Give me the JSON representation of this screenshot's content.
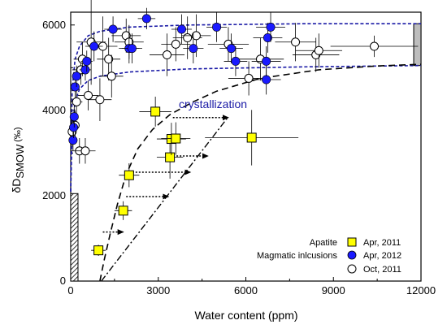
{
  "chart_data": {
    "type": "scatter",
    "title": "",
    "xlabel": "Water content (ppm)",
    "ylabel": {
      "main": "δD",
      "sub": "SMOW",
      "unit": "(‰)"
    },
    "xlim": [
      0,
      12000
    ],
    "ylim": [
      0,
      6300
    ],
    "xticks": [
      0,
      3000,
      6000,
      9000,
      12000
    ],
    "yticks": [
      0,
      2000,
      4000,
      6000
    ],
    "grid": false,
    "legend_placement": "bottom-right",
    "legend": {
      "group_labels": [
        "Apatite",
        "Magmatic inlcusions"
      ],
      "entries": [
        "Apr, 2011",
        "Apr, 2012",
        "Oct, 2011"
      ]
    },
    "annotation": "crystallization",
    "colors": {
      "apatite": "#ffff00",
      "apr2012": "#1a1aff",
      "model_curve": "#1a1aa6",
      "annotation": "#1a1aa6"
    },
    "series": [
      {
        "name": "Apr, 2011",
        "marker": "square",
        "points": [
          {
            "x": 950,
            "y": 720,
            "xerr": 250,
            "yerr": 130
          },
          {
            "x": 1800,
            "y": 1650,
            "xerr": 300,
            "yerr": 220
          },
          {
            "x": 2000,
            "y": 2480,
            "xerr": 350,
            "yerr": 280
          },
          {
            "x": 2900,
            "y": 3970,
            "xerr": 550,
            "yerr": 350
          },
          {
            "x": 3400,
            "y": 2900,
            "xerr": 450,
            "yerr": 500
          },
          {
            "x": 3450,
            "y": 3330,
            "xerr": 500,
            "yerr": 380
          },
          {
            "x": 3600,
            "y": 3340,
            "xerr": 500,
            "yerr": 380
          },
          {
            "x": 6200,
            "y": 3360,
            "xerr": 1600,
            "yerr": 650
          }
        ]
      },
      {
        "name": "Apr, 2012",
        "marker": "filled-circle",
        "points": [
          {
            "x": 80,
            "y": 3300,
            "xerr": 120,
            "yerr": 250
          },
          {
            "x": 100,
            "y": 3600,
            "xerr": 120,
            "yerr": 250
          },
          {
            "x": 120,
            "y": 3850,
            "xerr": 120,
            "yerr": 250
          },
          {
            "x": 150,
            "y": 4550,
            "xerr": 150,
            "yerr": 250
          },
          {
            "x": 200,
            "y": 4800,
            "xerr": 150,
            "yerr": 250
          },
          {
            "x": 500,
            "y": 4950,
            "xerr": 200,
            "yerr": 250
          },
          {
            "x": 550,
            "y": 5150,
            "xerr": 200,
            "yerr": 250
          },
          {
            "x": 800,
            "y": 5500,
            "xerr": 300,
            "yerr": 350
          },
          {
            "x": 1450,
            "y": 5900,
            "xerr": 300,
            "yerr": 300
          },
          {
            "x": 2000,
            "y": 5450,
            "xerr": 350,
            "yerr": 350
          },
          {
            "x": 2100,
            "y": 5450,
            "xerr": 350,
            "yerr": 350
          },
          {
            "x": 2600,
            "y": 6150,
            "xerr": 300,
            "yerr": 250
          },
          {
            "x": 3800,
            "y": 5900,
            "xerr": 350,
            "yerr": 350
          },
          {
            "x": 4200,
            "y": 5450,
            "xerr": 350,
            "yerr": 350
          },
          {
            "x": 5000,
            "y": 5950,
            "xerr": 350,
            "yerr": 350
          },
          {
            "x": 5500,
            "y": 5450,
            "xerr": 400,
            "yerr": 350
          },
          {
            "x": 5650,
            "y": 5150,
            "xerr": 400,
            "yerr": 350
          },
          {
            "x": 6700,
            "y": 4720,
            "xerr": 500,
            "yerr": 350
          },
          {
            "x": 6700,
            "y": 5150,
            "xerr": 500,
            "yerr": 350
          },
          {
            "x": 6750,
            "y": 5700,
            "xerr": 500,
            "yerr": 350
          },
          {
            "x": 6850,
            "y": 5950,
            "xerr": 500,
            "yerr": 350
          }
        ]
      },
      {
        "name": "Oct, 2011",
        "marker": "open-circle",
        "points": [
          {
            "x": 50,
            "y": 3500,
            "xerr": 150,
            "yerr": 350
          },
          {
            "x": 150,
            "y": 3650,
            "xerr": 150,
            "yerr": 350
          },
          {
            "x": 200,
            "y": 4200,
            "xerr": 200,
            "yerr": 350
          },
          {
            "x": 300,
            "y": 3050,
            "xerr": 300,
            "yerr": 300
          },
          {
            "x": 350,
            "y": 4950,
            "xerr": 300,
            "yerr": 350
          },
          {
            "x": 400,
            "y": 5200,
            "xerr": 300,
            "yerr": 400
          },
          {
            "x": 500,
            "y": 3050,
            "xerr": 350,
            "yerr": 300
          },
          {
            "x": 600,
            "y": 4350,
            "xerr": 350,
            "yerr": 350
          },
          {
            "x": 700,
            "y": 5600,
            "xerr": 500,
            "yerr": 1000
          },
          {
            "x": 1000,
            "y": 4250,
            "xerr": 400,
            "yerr": 500
          },
          {
            "x": 1100,
            "y": 5500,
            "xerr": 500,
            "yerr": 700
          },
          {
            "x": 1300,
            "y": 5200,
            "xerr": 400,
            "yerr": 500
          },
          {
            "x": 1400,
            "y": 4800,
            "xerr": 400,
            "yerr": 500
          },
          {
            "x": 1900,
            "y": 5750,
            "xerr": 500,
            "yerr": 400
          },
          {
            "x": 2000,
            "y": 5600,
            "xerr": 500,
            "yerr": 400
          },
          {
            "x": 3300,
            "y": 5300,
            "xerr": 600,
            "yerr": 500
          },
          {
            "x": 3600,
            "y": 5550,
            "xerr": 500,
            "yerr": 400
          },
          {
            "x": 4000,
            "y": 5700,
            "xerr": 500,
            "yerr": 500
          },
          {
            "x": 4300,
            "y": 5750,
            "xerr": 500,
            "yerr": 500
          },
          {
            "x": 5400,
            "y": 5550,
            "xerr": 700,
            "yerr": 400
          },
          {
            "x": 6100,
            "y": 4750,
            "xerr": 700,
            "yerr": 400
          },
          {
            "x": 6500,
            "y": 5200,
            "xerr": 800,
            "yerr": 500
          },
          {
            "x": 7700,
            "y": 5600,
            "xerr": 700,
            "yerr": 450
          },
          {
            "x": 8400,
            "y": 5300,
            "xerr": 800,
            "yerr": 400
          },
          {
            "x": 8500,
            "y": 5400,
            "xerr": 800,
            "yerr": 400
          },
          {
            "x": 10400,
            "y": 5500,
            "xerr": 1500,
            "yerr": 250
          }
        ]
      }
    ],
    "model_envelope_upper": [
      [
        0,
        2100
      ],
      [
        50,
        4500
      ],
      [
        150,
        5200
      ],
      [
        300,
        5500
      ],
      [
        600,
        5750
      ],
      [
        1000,
        5850
      ],
      [
        2000,
        5950
      ],
      [
        4000,
        6000
      ],
      [
        8000,
        6030
      ],
      [
        12000,
        6030
      ]
    ],
    "model_envelope_lower": [
      [
        0,
        2100
      ],
      [
        50,
        3500
      ],
      [
        150,
        4200
      ],
      [
        300,
        4500
      ],
      [
        600,
        4700
      ],
      [
        1000,
        4800
      ],
      [
        2000,
        4900
      ],
      [
        4000,
        4970
      ],
      [
        8000,
        5020
      ],
      [
        12000,
        5050
      ]
    ],
    "crystallization_upper_curve": [
      [
        1000,
        0
      ],
      [
        1150,
        500
      ],
      [
        1350,
        1100
      ],
      [
        1600,
        1800
      ],
      [
        1900,
        2500
      ],
      [
        2300,
        3100
      ],
      [
        2800,
        3550
      ],
      [
        3400,
        3900
      ],
      [
        4200,
        4200
      ],
      [
        5000,
        4450
      ],
      [
        6500,
        4750
      ],
      [
        8500,
        4950
      ],
      [
        10500,
        5040
      ],
      [
        12000,
        5080
      ]
    ],
    "crystallization_lower_line": [
      [
        1050,
        0
      ],
      [
        5400,
        3850
      ]
    ],
    "crystallization_arrows": [
      {
        "x0": 1100,
        "x1": 1800,
        "y": 1150
      },
      {
        "x0": 1900,
        "x1": 3350,
        "y": 1980
      },
      {
        "x0": 2000,
        "x1": 4100,
        "y": 2550
      },
      {
        "x0": 3400,
        "x1": 4700,
        "y": 2930
      },
      {
        "x0": 3500,
        "x1": 5400,
        "y": 3830
      }
    ],
    "left_bar": {
      "x_max": 250,
      "y": [
        0,
        2050
      ]
    },
    "right_bar": {
      "x_min": 11750,
      "x_max": 12000,
      "y": [
        5050,
        6030
      ]
    }
  }
}
